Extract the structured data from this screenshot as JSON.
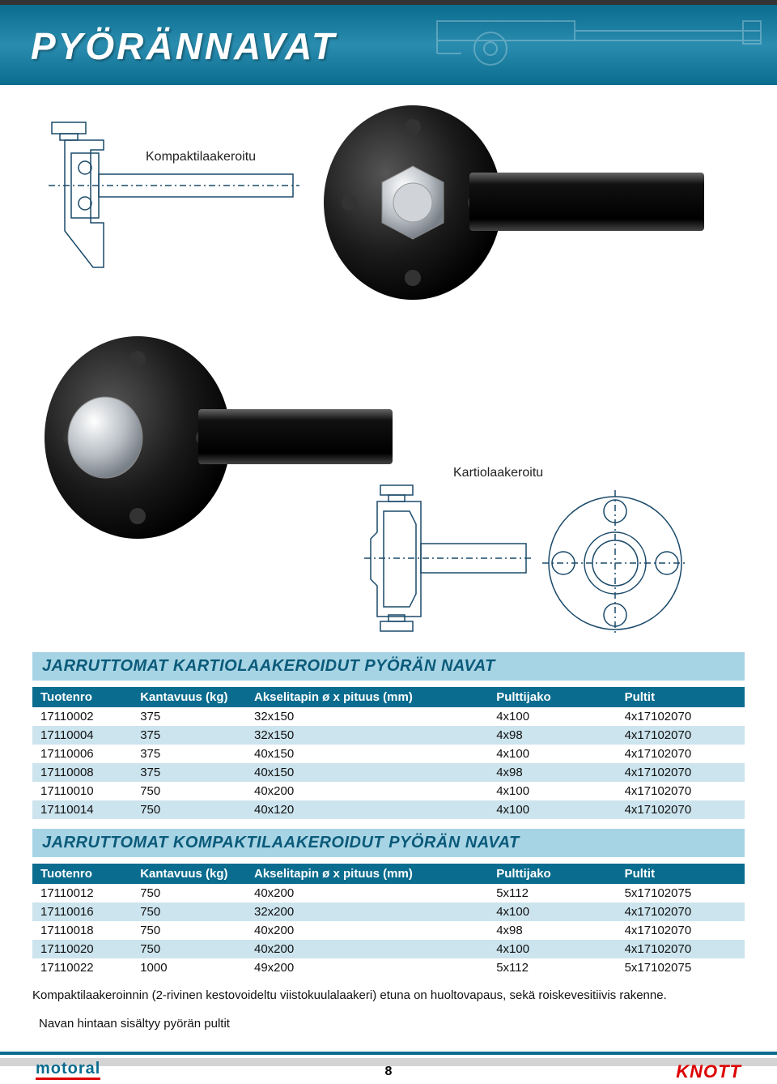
{
  "page": {
    "title": "PYÖRÄNNAVAT",
    "number": "8"
  },
  "labels": {
    "kompakti": "Kompaktilaakeroitu",
    "kartio": "Kartiolaakeroitu"
  },
  "section1": {
    "title": "JARRUTTOMAT KARTIOLAAKEROIDUT PYÖRÄN NAVAT",
    "columns": [
      "Tuotenro",
      "Kantavuus (kg)",
      "Akselitapin ø x pituus (mm)",
      "Pulttijako",
      "Pultit"
    ],
    "rows": [
      [
        "17110002",
        "375",
        "32x150",
        "4x100",
        "4x17102070"
      ],
      [
        "17110004",
        "375",
        "32x150",
        "4x98",
        "4x17102070"
      ],
      [
        "17110006",
        "375",
        "40x150",
        "4x100",
        "4x17102070"
      ],
      [
        "17110008",
        "375",
        "40x150",
        "4x98",
        "4x17102070"
      ],
      [
        "17110010",
        "750",
        "40x200",
        "4x100",
        "4x17102070"
      ],
      [
        "17110014",
        "750",
        "40x120",
        "4x100",
        "4x17102070"
      ]
    ],
    "col_widths": [
      "14%",
      "16%",
      "34%",
      "18%",
      "18%"
    ]
  },
  "section2": {
    "title": "JARRUTTOMAT KOMPAKTILAAKEROIDUT PYÖRÄN NAVAT",
    "columns": [
      "Tuotenro",
      "Kantavuus (kg)",
      "Akselitapin ø x pituus (mm)",
      "Pulttijako",
      "Pultit"
    ],
    "rows": [
      [
        "17110012",
        "750",
        "40x200",
        "5x112",
        "5x17102075"
      ],
      [
        "17110016",
        "750",
        "32x200",
        "4x100",
        "4x17102070"
      ],
      [
        "17110018",
        "750",
        "40x200",
        "4x98",
        "4x17102070"
      ],
      [
        "17110020",
        "750",
        "40x200",
        "4x100",
        "4x17102070"
      ],
      [
        "17110022",
        "1000",
        "49x200",
        "5x112",
        "5x17102075"
      ]
    ],
    "col_widths": [
      "14%",
      "16%",
      "34%",
      "18%",
      "18%"
    ]
  },
  "notes": {
    "line1": "Kompaktilaakeroinnin (2-rivinen kestovoideltu viistokuulalaakeri) etuna on huoltovapaus, sekä roiskevesitiivis rakenne.",
    "line2": "Navan hintaan sisältyy  pyörän pultit"
  },
  "footer": {
    "logo_left": "motoral",
    "logo_right": "KNOTT"
  },
  "colors": {
    "header_bg": "#a7d4e4",
    "header_text": "#0a5a7a",
    "th_bg": "#0a6c8e",
    "row_alt": "#cce4ee",
    "accent_red": "#d00000"
  }
}
